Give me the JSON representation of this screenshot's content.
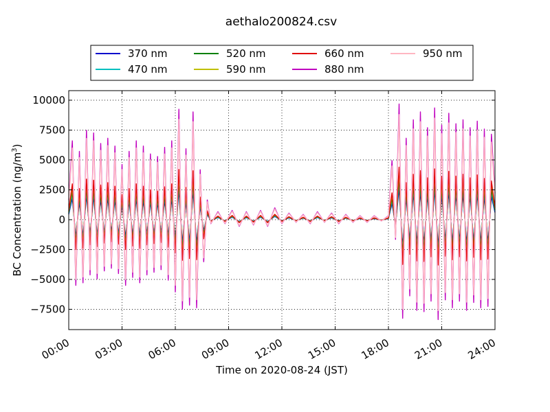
{
  "chart_data": {
    "type": "line",
    "title": "aethalo200824.csv",
    "xlabel": "Time on 2020-08-24 (JST)",
    "ylabel": "BC Concentration (ng/m",
    "ylabel_sup": "3",
    "ylabel_close": ")",
    "xlim": [
      0,
      24
    ],
    "ylim": [
      -9200,
      10800
    ],
    "xticks": [
      0,
      3,
      6,
      9,
      12,
      15,
      18,
      21,
      24
    ],
    "xtick_labels": [
      "00:00",
      "03:00",
      "06:00",
      "09:00",
      "12:00",
      "15:00",
      "18:00",
      "21:00",
      "24:00"
    ],
    "yticks": [
      -7500,
      -5000,
      -2500,
      0,
      2500,
      5000,
      7500,
      10000
    ],
    "ytick_labels": [
      "−7500",
      "−5000",
      "−2500",
      "0",
      "2500",
      "5000",
      "7500",
      "10000"
    ],
    "grid": true,
    "legend_position": "top-center",
    "x_sample_hours": [
      0.0,
      0.2,
      0.4,
      0.6,
      0.8,
      1.0,
      1.2,
      1.4,
      1.6,
      1.8,
      2.0,
      2.2,
      2.4,
      2.6,
      2.8,
      3.0,
      3.2,
      3.4,
      3.6,
      3.8,
      4.0,
      4.2,
      4.4,
      4.6,
      4.8,
      5.0,
      5.2,
      5.4,
      5.6,
      5.8,
      6.0,
      6.2,
      6.4,
      6.6,
      6.8,
      7.0,
      7.2,
      7.4,
      7.6,
      7.8,
      8.0,
      8.4,
      8.8,
      9.2,
      9.6,
      10.0,
      10.4,
      10.8,
      11.2,
      11.6,
      12.0,
      12.4,
      12.8,
      13.2,
      13.6,
      14.0,
      14.4,
      14.8,
      15.2,
      15.6,
      16.0,
      16.4,
      16.8,
      17.2,
      17.6,
      18.0,
      18.2,
      18.4,
      18.6,
      18.8,
      19.0,
      19.2,
      19.4,
      19.6,
      19.8,
      20.0,
      20.2,
      20.4,
      20.6,
      20.8,
      21.0,
      21.2,
      21.4,
      21.6,
      21.8,
      22.0,
      22.2,
      22.4,
      22.6,
      22.8,
      23.0,
      23.2,
      23.4,
      23.6,
      23.8,
      24.0
    ],
    "series": [
      {
        "name": "370 nm",
        "color": "#0000cc",
        "scale": 0.3
      },
      {
        "name": "470 nm",
        "color": "#00bfbf",
        "scale": 0.35
      },
      {
        "name": "520 nm",
        "color": "#008000",
        "scale": 0.4
      },
      {
        "name": "590 nm",
        "color": "#bfbf00",
        "scale": 0.45
      },
      {
        "name": "660 nm",
        "color": "#e00000",
        "scale": 0.5
      },
      {
        "name": "880 nm",
        "color": "#bf00bf",
        "scale": 1.1
      },
      {
        "name": "950 nm",
        "color": "#ffb6c1",
        "scale": 1.0
      }
    ],
    "reference_values_950nm": [
      1500,
      6000,
      -5000,
      5200,
      -4800,
      6800,
      -4200,
      6600,
      -4500,
      5800,
      -3900,
      6200,
      -3700,
      5600,
      -4100,
      4200,
      -5000,
      5200,
      -4400,
      6000,
      -4800,
      5600,
      -4200,
      5000,
      -4000,
      4800,
      -3800,
      5500,
      -4600,
      6000,
      -5500,
      8400,
      -6800,
      5400,
      -6500,
      8200,
      -6700,
      3800,
      -3200,
      1500,
      -300,
      600,
      -300,
      700,
      -500,
      600,
      -400,
      700,
      -500,
      900,
      -300,
      500,
      -200,
      400,
      -300,
      600,
      -200,
      500,
      -300,
      400,
      -200,
      300,
      -200,
      300,
      -100,
      300,
      4500,
      -1500,
      8800,
      -7500,
      6200,
      -5800,
      7600,
      -6900,
      8200,
      -7000,
      7000,
      -6200,
      8500,
      -7600,
      7200,
      -6100,
      8100,
      -6700,
      7300,
      -6200,
      7600,
      -6900,
      7000,
      -6300,
      7500,
      -6700,
      6900,
      -6600,
      6500,
      2000
    ]
  }
}
